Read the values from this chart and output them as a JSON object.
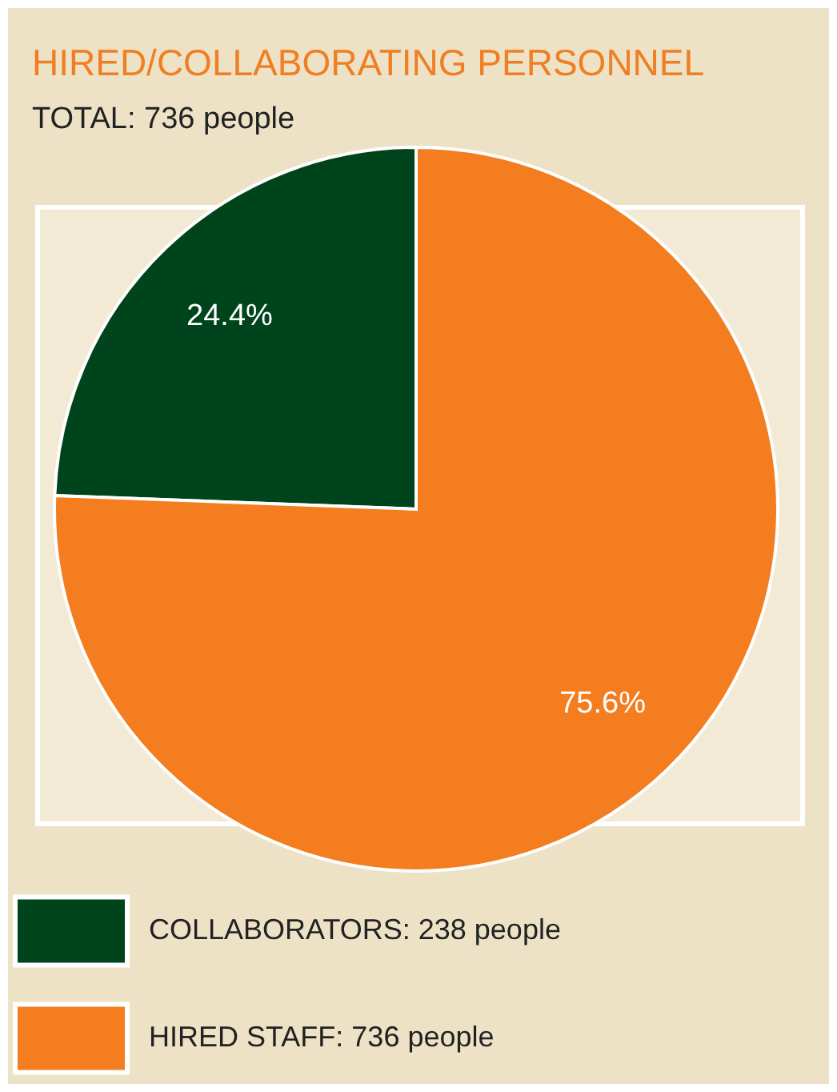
{
  "chart_data": {
    "type": "pie",
    "title": "HIRED/COLLABORATING PERSONNEL",
    "subtitle": "TOTAL: 736 people",
    "categories": [
      "COLLABORATORS: 238 people",
      "HIRED STAFF: 736 people"
    ],
    "values": [
      24.4,
      75.6
    ],
    "colors": [
      "#00441c",
      "#f47d20"
    ],
    "value_labels": [
      "24.4%",
      "75.6%"
    ],
    "legend": "bottom left"
  }
}
